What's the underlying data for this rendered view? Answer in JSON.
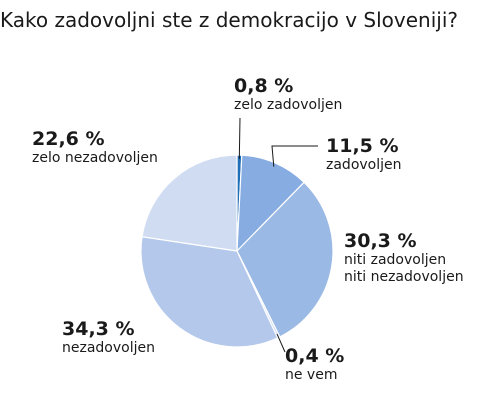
{
  "chart_data": {
    "type": "pie",
    "title": "Kako zadovoljni ste z demokracijo v Sloveniji?",
    "categories": [
      "zelo zadovoljen",
      "zadovoljen",
      "niti zadovoljen niti nezadovoljen",
      "ne vem",
      "nezadovoljen",
      "zelo nezadovoljen"
    ],
    "values": [
      0.8,
      11.5,
      30.3,
      0.4,
      34.3,
      22.6
    ],
    "value_labels": [
      "0,8 %",
      "11,5 %",
      "30,3 %",
      "0,4 %",
      "34,3 %",
      "22,6 %"
    ],
    "label_lines": [
      [
        "zelo zadovoljen"
      ],
      [
        "zadovoljen"
      ],
      [
        "niti zadovoljen",
        "niti nezadovoljen"
      ],
      [
        "ne vem"
      ],
      [
        "nezadovoljen"
      ],
      [
        "zelo nezadovoljen"
      ]
    ],
    "colors": [
      "#1f6fb8",
      "#86ace2",
      "#9ab9e4",
      "#c9d9f0",
      "#b4c8ec",
      "#cfdcf2"
    ]
  }
}
